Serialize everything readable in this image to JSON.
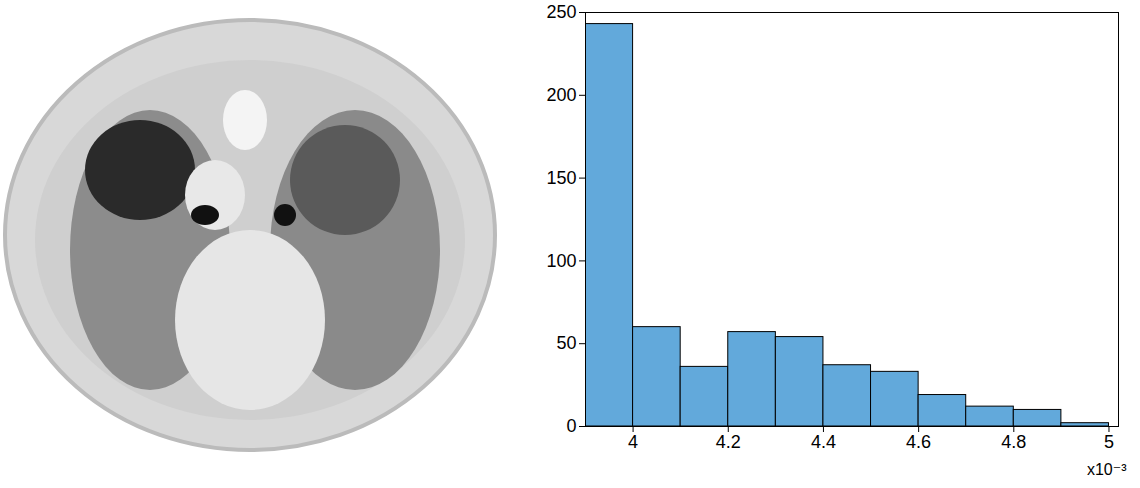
{
  "chart_data": {
    "type": "histogram",
    "bins": [
      3.9,
      4.0,
      4.1,
      4.2,
      4.3,
      4.4,
      4.5,
      4.6,
      4.7,
      4.8,
      4.9,
      5.0
    ],
    "values": [
      243,
      60,
      36,
      57,
      54,
      37,
      33,
      19,
      12,
      10,
      2
    ],
    "color": "#62a9db",
    "xlim": [
      3.9,
      5.02
    ],
    "xticks": [
      4,
      4.2,
      4.4,
      4.6,
      4.8,
      5
    ],
    "ylim": [
      0,
      250
    ],
    "yticks": [
      0,
      50,
      100,
      150,
      200,
      250
    ],
    "annotations": [
      "x10⁻³"
    ]
  }
}
